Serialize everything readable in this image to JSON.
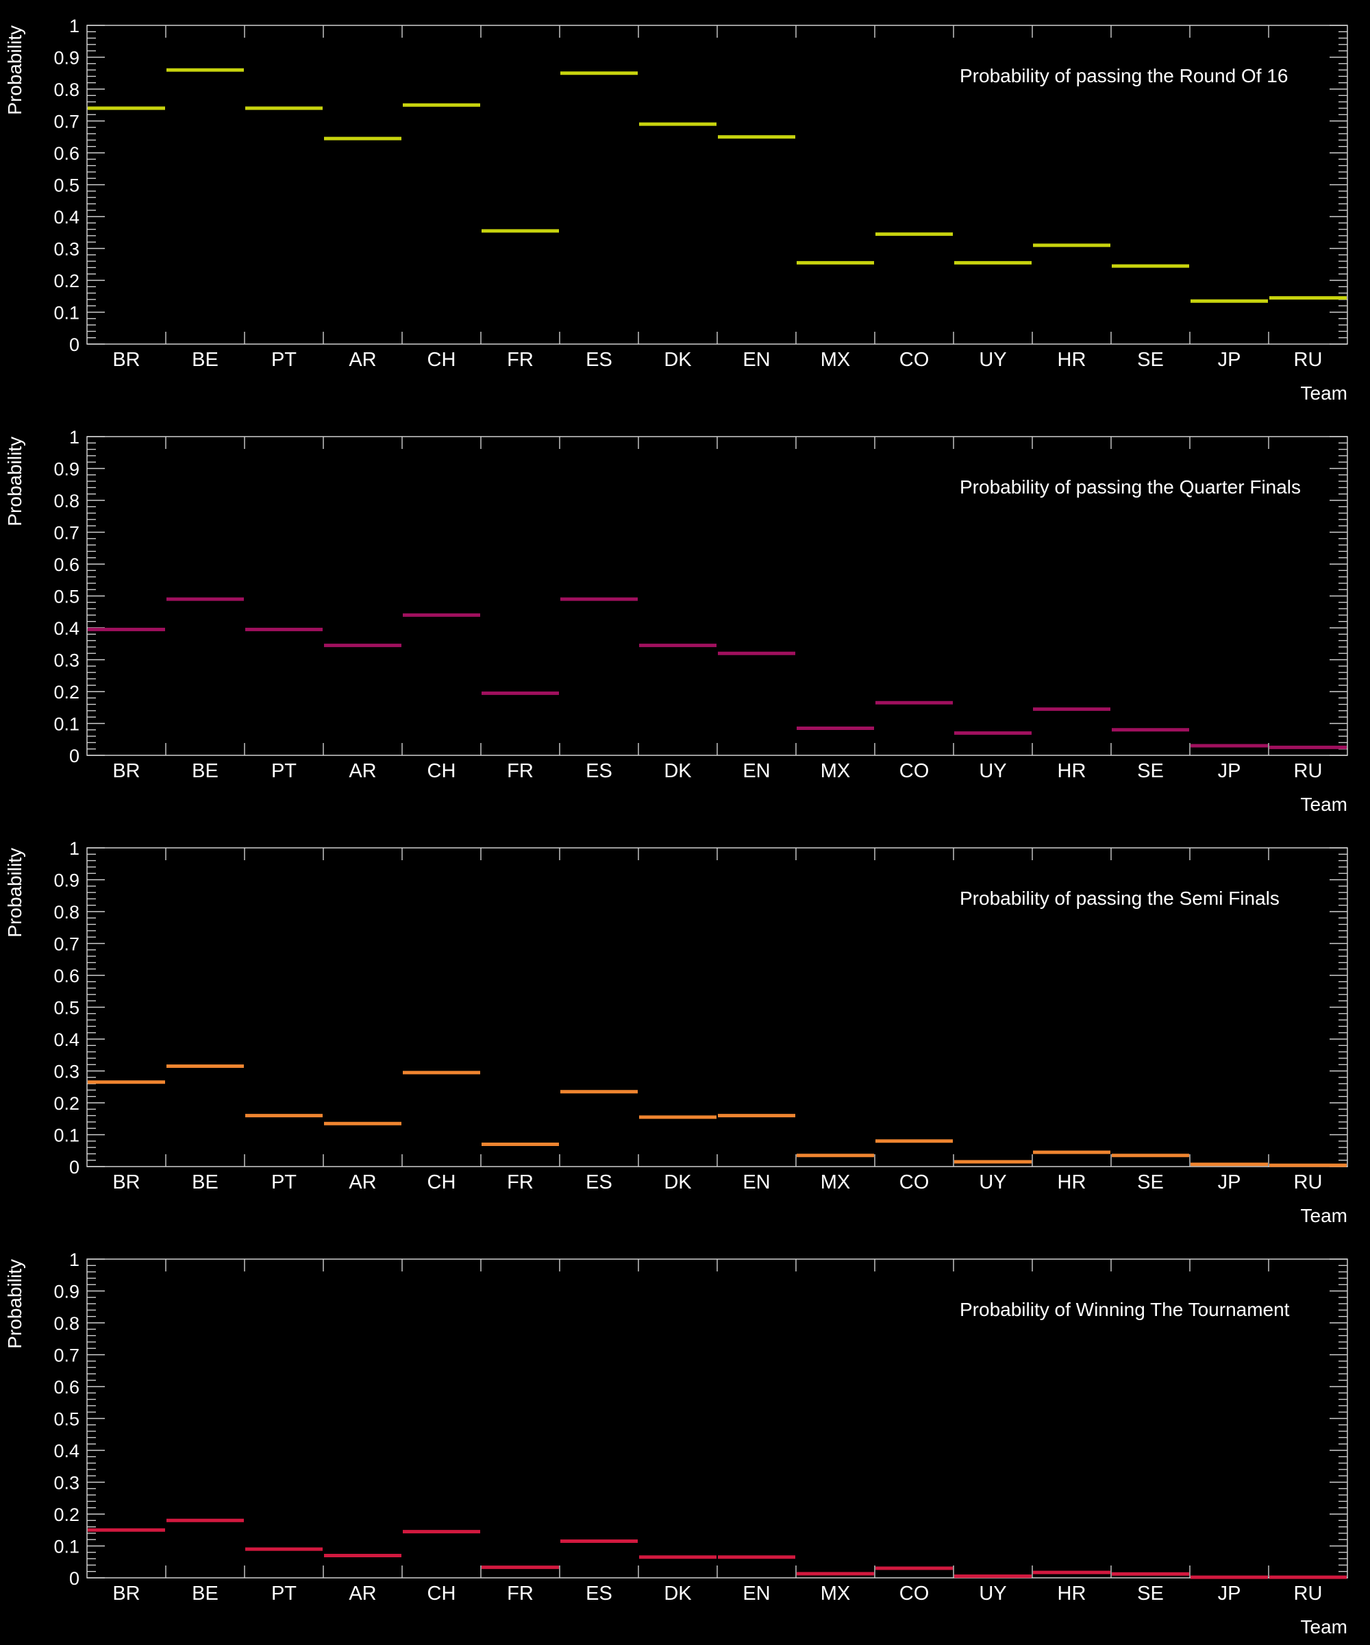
{
  "chart_data": [
    {
      "type": "bar",
      "title": "Probability of passing the Round Of 16",
      "xlabel": "Team",
      "ylabel": "Probability",
      "ylim": [
        0,
        1
      ],
      "categories": [
        "BR",
        "BE",
        "PT",
        "AR",
        "CH",
        "FR",
        "ES",
        "DK",
        "EN",
        "MX",
        "CO",
        "UY",
        "HR",
        "SE",
        "JP",
        "RU"
      ],
      "values": [
        0.74,
        0.86,
        0.74,
        0.645,
        0.75,
        0.355,
        0.85,
        0.69,
        0.65,
        0.255,
        0.345,
        0.255,
        0.31,
        0.245,
        0.135,
        0.145
      ],
      "color": "#c8d40e",
      "grid": false
    },
    {
      "type": "bar",
      "title": "Probability of passing the Quarter Finals",
      "xlabel": "Team",
      "ylabel": "Probability",
      "ylim": [
        0,
        1
      ],
      "categories": [
        "BR",
        "BE",
        "PT",
        "AR",
        "CH",
        "FR",
        "ES",
        "DK",
        "EN",
        "MX",
        "CO",
        "UY",
        "HR",
        "SE",
        "JP",
        "RU"
      ],
      "values": [
        0.395,
        0.49,
        0.395,
        0.345,
        0.44,
        0.195,
        0.49,
        0.345,
        0.32,
        0.085,
        0.165,
        0.07,
        0.145,
        0.08,
        0.03,
        0.025
      ],
      "color": "#a0105e",
      "grid": false
    },
    {
      "type": "bar",
      "title": "Probability of passing the Semi Finals",
      "xlabel": "Team",
      "ylabel": "Probability",
      "ylim": [
        0,
        1
      ],
      "categories": [
        "BR",
        "BE",
        "PT",
        "AR",
        "CH",
        "FR",
        "ES",
        "DK",
        "EN",
        "MX",
        "CO",
        "UY",
        "HR",
        "SE",
        "JP",
        "RU"
      ],
      "values": [
        0.265,
        0.315,
        0.16,
        0.135,
        0.295,
        0.07,
        0.235,
        0.155,
        0.16,
        0.035,
        0.08,
        0.015,
        0.045,
        0.035,
        0.007,
        0.004
      ],
      "color": "#f08530",
      "grid": false
    },
    {
      "type": "bar",
      "title": "Probability of Winning The Tournament",
      "xlabel": "Team",
      "ylabel": "Probability",
      "ylim": [
        0,
        1
      ],
      "categories": [
        "BR",
        "BE",
        "PT",
        "AR",
        "CH",
        "FR",
        "ES",
        "DK",
        "EN",
        "MX",
        "CO",
        "UY",
        "HR",
        "SE",
        "JP",
        "RU"
      ],
      "values": [
        0.15,
        0.18,
        0.09,
        0.07,
        0.145,
        0.033,
        0.115,
        0.065,
        0.065,
        0.013,
        0.03,
        0.005,
        0.017,
        0.012,
        0.002,
        0.002
      ],
      "color": "#d2193f",
      "grid": false
    }
  ]
}
